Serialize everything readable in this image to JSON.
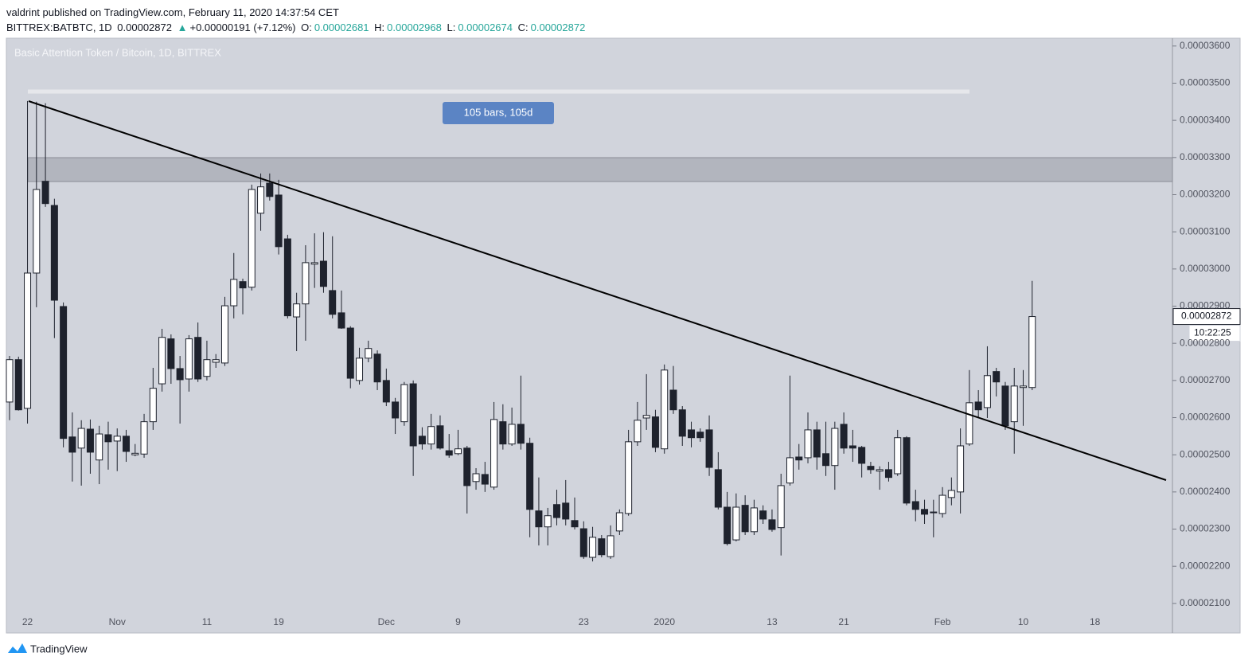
{
  "header": {
    "author_line": "valdrint published on TradingView.com, February 11, 2020 14:37:54 CET",
    "symbol": "BITTREX:BATBTC, 1D",
    "last": "0.00002872",
    "arrow": "▲",
    "change": "+0.00000191 (+7.12%)",
    "ohlc": [
      {
        "key": "O:",
        "value": "0.00002681"
      },
      {
        "key": "H:",
        "value": "0.00002968"
      },
      {
        "key": "L:",
        "value": "0.00002674"
      },
      {
        "key": "C:",
        "value": "0.00002872"
      }
    ]
  },
  "chart_data": {
    "type": "candlestick",
    "title": "Basic Attention Token / Bitcoin, 1D, BITTREX",
    "annotation": "105 bars, 105d",
    "price_label": "0.00002872",
    "countdown": "10:22:25",
    "up_color": "#ffffff",
    "down_color": "#1e222d",
    "ylim": [
      2.074e-05,
      3.621e-05
    ],
    "yticks": [
      {
        "value": 2.1e-05,
        "label": "0.00002100"
      },
      {
        "value": 2.2e-05,
        "label": "0.00002200"
      },
      {
        "value": 2.3e-05,
        "label": "0.00002300"
      },
      {
        "value": 2.4e-05,
        "label": "0.00002400"
      },
      {
        "value": 2.5e-05,
        "label": "0.00002500"
      },
      {
        "value": 2.6e-05,
        "label": "0.00002600"
      },
      {
        "value": 2.7e-05,
        "label": "0.00002700"
      },
      {
        "value": 2.8e-05,
        "label": "0.00002800"
      },
      {
        "value": 2.9e-05,
        "label": "0.00002900"
      },
      {
        "value": 3e-05,
        "label": "0.00003000"
      },
      {
        "value": 3.1e-05,
        "label": "0.00003100"
      },
      {
        "value": 3.2e-05,
        "label": "0.00003200"
      },
      {
        "value": 3.3e-05,
        "label": "0.00003300"
      },
      {
        "value": 3.4e-05,
        "label": "0.00003400"
      },
      {
        "value": 3.5e-05,
        "label": "0.00003500"
      },
      {
        "value": 3.6e-05,
        "label": "0.00003600"
      }
    ],
    "categories": [
      null,
      null,
      "22",
      null,
      null,
      null,
      null,
      null,
      null,
      null,
      null,
      null,
      "Nov",
      null,
      null,
      null,
      null,
      null,
      null,
      null,
      null,
      null,
      "11",
      null,
      null,
      null,
      null,
      null,
      null,
      null,
      "19",
      null,
      null,
      null,
      null,
      null,
      null,
      null,
      null,
      null,
      null,
      null,
      "Dec",
      null,
      null,
      null,
      null,
      null,
      null,
      null,
      "9",
      null,
      null,
      null,
      null,
      null,
      null,
      null,
      null,
      null,
      null,
      null,
      null,
      null,
      "23",
      null,
      null,
      null,
      null,
      null,
      null,
      null,
      null,
      "2020",
      null,
      null,
      null,
      null,
      null,
      null,
      null,
      null,
      null,
      null,
      null,
      "13",
      null,
      null,
      null,
      null,
      null,
      null,
      null,
      "21",
      null,
      null,
      null,
      null,
      null,
      null,
      null,
      null,
      null,
      null,
      "Feb",
      null,
      null,
      null,
      null,
      null,
      null,
      null,
      null,
      "10",
      null,
      null,
      null,
      null,
      null,
      null,
      null,
      "18",
      null,
      null,
      null,
      null,
      null,
      null,
      null,
      null
    ],
    "open": [
      2.642e-05,
      2.756e-05,
      2.625e-05,
      2.989e-05,
      3.236e-05,
      3.171e-05,
      2.899e-05,
      2.548e-05,
      2.518e-05,
      2.569e-05,
      2.486e-05,
      2.554e-05,
      2.537e-05,
      2.55e-05,
      2.5e-05,
      2.502e-05,
      2.589e-05,
      2.691e-05,
      2.812e-05,
      2.732e-05,
      2.704e-05,
      2.816e-05,
      2.711e-05,
      2.749e-05,
      2.747e-05,
      2.901e-05,
      2.966e-05,
      2.951e-05,
      3.15e-05,
      3.231e-05,
      3.199e-05,
      3.081e-05,
      2.871e-05,
      2.906e-05,
      3.013e-05,
      3.021e-05,
      2.942e-05,
      2.882e-05,
      2.841e-05,
      2.7e-05,
      2.76e-05,
      2.771e-05,
      2.7e-05,
      2.642e-05,
      2.589e-05,
      2.691e-05,
      2.55e-05,
      2.529e-05,
      2.578e-05,
      2.511e-05,
      2.503e-05,
      2.518e-05,
      2.428e-05,
      2.447e-05,
      2.413e-05,
      2.589e-05,
      2.529e-05,
      2.582e-05,
      2.531e-05,
      2.349e-05,
      2.306e-05,
      2.366e-05,
      2.37e-05,
      2.323e-05,
      2.301e-05,
      2.224e-05,
      2.274e-05,
      2.226e-05,
      2.295e-05,
      2.342e-05,
      2.535e-05,
      2.599e-05,
      2.602e-05,
      2.516e-05,
      2.674e-05,
      2.621e-05,
      2.567e-05,
      2.561e-05,
      2.567e-05,
      2.46e-05,
      2.359e-05,
      2.271e-05,
      2.364e-05,
      2.293e-05,
      2.349e-05,
      2.325e-05,
      2.304e-05,
      2.424e-05,
      2.494e-05,
      2.492e-05,
      2.567e-05,
      2.503e-05,
      2.471e-05,
      2.582e-05,
      2.524e-05,
      2.52e-05,
      2.469e-05,
      2.456e-05,
      2.46e-05,
      2.449e-05,
      2.546e-05,
      2.374e-05,
      2.353e-05,
      2.344e-05,
      2.342e-05,
      2.385e-05,
      2.4e-05,
      2.529e-05,
      2.642e-05,
      2.627e-05,
      2.724e-05,
      2.685e-05,
      2.589e-05,
      2.681e-05,
      2.681e-05,
      null,
      null,
      null,
      null,
      null,
      null,
      null,
      null,
      null,
      null,
      null,
      null,
      null,
      null,
      null
    ],
    "high": [
      2.766e-05,
      2.764e-05,
      3.452e-05,
      3.45e-05,
      3.446e-05,
      3.189e-05,
      2.91e-05,
      2.614e-05,
      2.593e-05,
      2.595e-05,
      2.578e-05,
      2.589e-05,
      2.571e-05,
      2.567e-05,
      2.529e-05,
      2.61e-05,
      2.734e-05,
      2.839e-05,
      2.824e-05,
      2.766e-05,
      2.822e-05,
      2.856e-05,
      2.807e-05,
      2.771e-05,
      2.925e-05,
      3.043e-05,
      2.974e-05,
      3.227e-05,
      3.257e-05,
      3.257e-05,
      3.24e-05,
      3.092e-05,
      2.936e-05,
      3.064e-05,
      3.096e-05,
      3.099e-05,
      3.088e-05,
      2.942e-05,
      2.846e-05,
      2.788e-05,
      2.807e-05,
      2.781e-05,
      2.732e-05,
      2.653e-05,
      2.696e-05,
      2.7e-05,
      2.574e-05,
      2.61e-05,
      2.606e-05,
      2.556e-05,
      2.567e-05,
      2.524e-05,
      2.464e-05,
      2.481e-05,
      2.642e-05,
      2.636e-05,
      2.627e-05,
      2.713e-05,
      2.546e-05,
      2.439e-05,
      2.357e-05,
      2.406e-05,
      2.432e-05,
      2.385e-05,
      2.321e-05,
      2.306e-05,
      2.284e-05,
      2.31e-05,
      2.353e-05,
      2.567e-05,
      2.642e-05,
      2.717e-05,
      2.621e-05,
      2.743e-05,
      2.739e-05,
      2.631e-05,
      2.589e-05,
      2.571e-05,
      2.606e-05,
      2.507e-05,
      2.4e-05,
      2.396e-05,
      2.391e-05,
      2.379e-05,
      2.364e-05,
      2.353e-05,
      2.449e-05,
      2.713e-05,
      2.529e-05,
      2.614e-05,
      2.589e-05,
      2.589e-05,
      2.589e-05,
      2.614e-05,
      2.567e-05,
      2.524e-05,
      2.481e-05,
      2.469e-05,
      2.481e-05,
      2.567e-05,
      2.55e-05,
      2.406e-05,
      2.379e-05,
      2.379e-05,
      2.413e-05,
      2.439e-05,
      2.571e-05,
      2.728e-05,
      2.674e-05,
      2.792e-05,
      2.734e-05,
      2.696e-05,
      2.734e-05,
      2.728e-05,
      2.968e-05,
      null,
      null,
      null,
      null,
      null,
      null,
      null,
      null,
      null,
      null,
      null,
      null,
      null,
      null,
      null
    ],
    "low": [
      2.593e-05,
      2.619e-05,
      2.584e-05,
      2.897e-05,
      3.167e-05,
      2.814e-05,
      2.52e-05,
      2.428e-05,
      2.417e-05,
      2.449e-05,
      2.421e-05,
      2.46e-05,
      2.456e-05,
      2.481e-05,
      2.496e-05,
      2.492e-05,
      2.567e-05,
      2.67e-05,
      2.691e-05,
      2.584e-05,
      2.67e-05,
      2.696e-05,
      2.7e-05,
      2.734e-05,
      2.739e-05,
      2.867e-05,
      2.878e-05,
      2.942e-05,
      3.103e-05,
      3.184e-05,
      3.039e-05,
      2.867e-05,
      2.779e-05,
      2.807e-05,
      2.949e-05,
      2.936e-05,
      2.867e-05,
      2.839e-05,
      2.679e-05,
      2.689e-05,
      2.749e-05,
      2.674e-05,
      2.631e-05,
      2.556e-05,
      2.578e-05,
      2.443e-05,
      2.514e-05,
      2.514e-05,
      2.514e-05,
      2.492e-05,
      2.499e-05,
      2.342e-05,
      2.406e-05,
      2.4e-05,
      2.406e-05,
      2.514e-05,
      2.524e-05,
      2.514e-05,
      2.278e-05,
      2.256e-05,
      2.256e-05,
      2.31e-05,
      2.31e-05,
      2.299e-05,
      2.22e-05,
      2.213e-05,
      2.224e-05,
      2.22e-05,
      2.284e-05,
      2.336e-05,
      2.524e-05,
      2.567e-05,
      2.507e-05,
      2.503e-05,
      2.61e-05,
      2.524e-05,
      2.52e-05,
      2.535e-05,
      2.443e-05,
      2.353e-05,
      2.256e-05,
      2.267e-05,
      2.284e-05,
      2.284e-05,
      2.314e-05,
      2.293e-05,
      2.229e-05,
      2.417e-05,
      2.46e-05,
      2.477e-05,
      2.46e-05,
      2.443e-05,
      2.406e-05,
      2.503e-05,
      2.481e-05,
      2.439e-05,
      2.449e-05,
      2.406e-05,
      2.428e-05,
      2.443e-05,
      2.364e-05,
      2.321e-05,
      2.314e-05,
      2.278e-05,
      2.331e-05,
      2.364e-05,
      2.342e-05,
      2.524e-05,
      2.599e-05,
      2.599e-05,
      2.657e-05,
      2.567e-05,
      2.503e-05,
      2.578e-05,
      2.674e-05,
      null,
      null,
      null,
      null,
      null,
      null,
      null,
      null,
      null,
      null,
      null,
      null,
      null,
      null,
      null
    ],
    "close": [
      2.756e-05,
      2.621e-05,
      2.989e-05,
      3.214e-05,
      3.176e-05,
      2.916e-05,
      2.544e-05,
      2.507e-05,
      2.571e-05,
      2.507e-05,
      2.556e-05,
      2.535e-05,
      2.55e-05,
      2.509e-05,
      2.504e-05,
      2.589e-05,
      2.679e-05,
      2.816e-05,
      2.732e-05,
      2.702e-05,
      2.812e-05,
      2.704e-05,
      2.756e-05,
      2.756e-05,
      2.901e-05,
      2.972e-05,
      2.949e-05,
      3.214e-05,
      3.221e-05,
      3.195e-05,
      3.06e-05,
      2.874e-05,
      2.906e-05,
      3.017e-05,
      3.017e-05,
      2.953e-05,
      2.878e-05,
      2.841e-05,
      2.706e-05,
      2.76e-05,
      2.786e-05,
      2.696e-05,
      2.642e-05,
      2.599e-05,
      2.689e-05,
      2.524e-05,
      2.529e-05,
      2.576e-05,
      2.518e-05,
      2.499e-05,
      2.516e-05,
      2.417e-05,
      2.449e-05,
      2.421e-05,
      2.595e-05,
      2.529e-05,
      2.582e-05,
      2.531e-05,
      2.353e-05,
      2.306e-05,
      2.336e-05,
      2.331e-05,
      2.327e-05,
      2.306e-05,
      2.226e-05,
      2.278e-05,
      2.231e-05,
      2.282e-05,
      2.344e-05,
      2.535e-05,
      2.593e-05,
      2.606e-05,
      2.52e-05,
      2.728e-05,
      2.621e-05,
      2.55e-05,
      2.546e-05,
      2.546e-05,
      2.466e-05,
      2.359e-05,
      2.261e-05,
      2.359e-05,
      2.293e-05,
      2.357e-05,
      2.327e-05,
      2.299e-05,
      2.417e-05,
      2.492e-05,
      2.486e-05,
      2.567e-05,
      2.494e-05,
      2.471e-05,
      2.571e-05,
      2.518e-05,
      2.518e-05,
      2.477e-05,
      2.46e-05,
      2.46e-05,
      2.439e-05,
      2.546e-05,
      2.37e-05,
      2.353e-05,
      2.34e-05,
      2.346e-05,
      2.391e-05,
      2.404e-05,
      2.524e-05,
      2.64e-05,
      2.621e-05,
      2.713e-05,
      2.696e-05,
      2.578e-05,
      2.685e-05,
      2.685e-05,
      2.872e-05,
      null,
      null,
      null,
      null,
      null,
      null,
      null,
      null,
      null,
      null,
      null,
      null,
      null,
      null,
      null
    ]
  },
  "footer": {
    "brand": "TradingView"
  }
}
